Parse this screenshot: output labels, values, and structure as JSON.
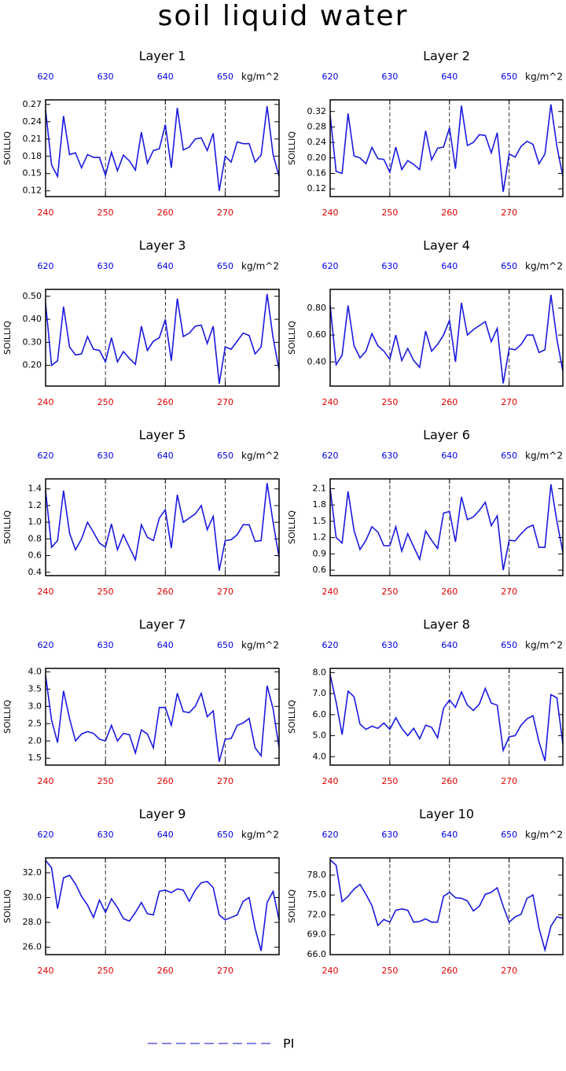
{
  "title": "soil liquid water",
  "legend": {
    "label": "PI",
    "color": "#3b3bd0"
  },
  "xtick_color": "#e00000",
  "x2tick_color": "#0000e0",
  "chart_data": [
    {
      "type": "line",
      "title": "Layer 1",
      "ylabel": "SOILLIQ",
      "x2label": "kg/m^2",
      "color": "#1a1ae0",
      "grid_x": true,
      "x": [
        240,
        241,
        242,
        243,
        244,
        245,
        246,
        247,
        248,
        249,
        250,
        251,
        252,
        253,
        254,
        255,
        256,
        257,
        258,
        259,
        260,
        261,
        262,
        263,
        264,
        265,
        266,
        267,
        268,
        269,
        270,
        271,
        272,
        273,
        274,
        275,
        276,
        277,
        278,
        279
      ],
      "values": [
        0.26,
        0.165,
        0.145,
        0.25,
        0.183,
        0.186,
        0.16,
        0.183,
        0.178,
        0.178,
        0.147,
        0.187,
        0.155,
        0.182,
        0.172,
        0.156,
        0.222,
        0.168,
        0.19,
        0.193,
        0.235,
        0.16,
        0.264,
        0.191,
        0.196,
        0.21,
        0.212,
        0.19,
        0.22,
        0.12,
        0.18,
        0.17,
        0.205,
        0.202,
        0.202,
        0.17,
        0.182,
        0.267,
        0.183,
        0.145
      ],
      "xlim": [
        240,
        279
      ],
      "xticks": [
        240,
        250,
        260,
        270
      ],
      "x2lim": [
        620,
        659
      ],
      "x2ticks": [
        620,
        630,
        640,
        650
      ],
      "ylim": [
        0.11,
        0.278
      ],
      "yticks": [
        0.12,
        0.15,
        0.18,
        0.21,
        0.24,
        0.27
      ]
    },
    {
      "type": "line",
      "title": "Layer 2",
      "ylabel": "SOILLIQ",
      "x2label": "kg/m^2",
      "color": "#1a1ae0",
      "grid_x": true,
      "x": [
        240,
        241,
        242,
        243,
        244,
        245,
        246,
        247,
        248,
        249,
        250,
        251,
        252,
        253,
        254,
        255,
        256,
        257,
        258,
        259,
        260,
        261,
        262,
        263,
        264,
        265,
        266,
        267,
        268,
        269,
        270,
        271,
        272,
        273,
        274,
        275,
        276,
        277,
        278,
        279
      ],
      "values": [
        0.31,
        0.165,
        0.16,
        0.315,
        0.205,
        0.2,
        0.185,
        0.227,
        0.198,
        0.196,
        0.163,
        0.228,
        0.17,
        0.193,
        0.183,
        0.17,
        0.27,
        0.195,
        0.225,
        0.228,
        0.278,
        0.172,
        0.335,
        0.232,
        0.24,
        0.26,
        0.258,
        0.213,
        0.265,
        0.112,
        0.21,
        0.202,
        0.23,
        0.243,
        0.235,
        0.185,
        0.21,
        0.338,
        0.23,
        0.152
      ],
      "xlim": [
        240,
        279
      ],
      "xticks": [
        240,
        250,
        260,
        270
      ],
      "x2lim": [
        620,
        659
      ],
      "x2ticks": [
        620,
        630,
        640,
        650
      ],
      "ylim": [
        0.1,
        0.35
      ],
      "yticks": [
        0.12,
        0.16,
        {
          "value": 0.2,
          "label": "0.20"
        },
        0.24,
        0.28,
        0.32
      ]
    },
    {
      "type": "line",
      "title": "Layer 3",
      "ylabel": "SOILLIQ",
      "x2label": "kg/m^2",
      "color": "#1a1ae0",
      "grid_x": true,
      "x": [
        240,
        241,
        242,
        243,
        244,
        245,
        246,
        247,
        248,
        249,
        250,
        251,
        252,
        253,
        254,
        255,
        256,
        257,
        258,
        259,
        260,
        261,
        262,
        263,
        264,
        265,
        266,
        267,
        268,
        269,
        270,
        271,
        272,
        273,
        274,
        275,
        276,
        277,
        278,
        279
      ],
      "values": [
        0.47,
        0.2,
        0.22,
        0.455,
        0.28,
        0.245,
        0.25,
        0.325,
        0.27,
        0.265,
        0.215,
        0.32,
        0.215,
        0.26,
        0.23,
        0.205,
        0.37,
        0.265,
        0.305,
        0.32,
        0.4,
        0.22,
        0.49,
        0.325,
        0.34,
        0.37,
        0.375,
        0.295,
        0.37,
        0.12,
        0.28,
        0.27,
        0.305,
        0.34,
        0.33,
        0.25,
        0.28,
        0.51,
        0.32,
        0.18
      ],
      "xlim": [
        240,
        279
      ],
      "xticks": [
        240,
        250,
        260,
        270
      ],
      "x2lim": [
        620,
        659
      ],
      "x2ticks": [
        620,
        630,
        640,
        650
      ],
      "ylim": [
        0.11,
        0.53
      ],
      "yticks": [
        {
          "value": 0.2,
          "label": "0.20"
        },
        {
          "value": 0.3,
          "label": "0.30"
        },
        {
          "value": 0.4,
          "label": "0.40"
        },
        {
          "value": 0.5,
          "label": "0.50"
        }
      ]
    },
    {
      "type": "line",
      "title": "Layer 4",
      "ylabel": "SOILLIQ",
      "x2label": "kg/m^2",
      "color": "#1a1ae0",
      "grid_x": true,
      "x": [
        240,
        241,
        242,
        243,
        244,
        245,
        246,
        247,
        248,
        249,
        250,
        251,
        252,
        253,
        254,
        255,
        256,
        257,
        258,
        259,
        260,
        261,
        262,
        263,
        264,
        265,
        266,
        267,
        268,
        269,
        270,
        271,
        272,
        273,
        274,
        275,
        276,
        277,
        278,
        279
      ],
      "values": [
        0.82,
        0.38,
        0.45,
        0.82,
        0.52,
        0.43,
        0.48,
        0.61,
        0.52,
        0.48,
        0.42,
        0.6,
        0.41,
        0.5,
        0.41,
        0.36,
        0.63,
        0.48,
        0.53,
        0.6,
        0.71,
        0.4,
        0.84,
        0.6,
        0.64,
        0.67,
        0.7,
        0.55,
        0.65,
        0.24,
        0.5,
        0.49,
        0.53,
        0.6,
        0.6,
        0.47,
        0.49,
        0.9,
        0.57,
        0.33
      ],
      "xlim": [
        240,
        279
      ],
      "xticks": [
        240,
        250,
        260,
        270
      ],
      "x2lim": [
        620,
        659
      ],
      "x2ticks": [
        620,
        630,
        640,
        650
      ],
      "ylim": [
        0.22,
        0.94
      ],
      "yticks": [
        {
          "value": 0.4,
          "label": "0.40"
        },
        {
          "value": 0.6,
          "label": "0.60"
        },
        {
          "value": 0.8,
          "label": "0.80"
        }
      ]
    },
    {
      "type": "line",
      "title": "Layer 5",
      "ylabel": "SOILLIQ",
      "x2label": "kg/m^2",
      "color": "#1a1ae0",
      "grid_x": true,
      "x": [
        240,
        241,
        242,
        243,
        244,
        245,
        246,
        247,
        248,
        249,
        250,
        251,
        252,
        253,
        254,
        255,
        256,
        257,
        258,
        259,
        260,
        261,
        262,
        263,
        264,
        265,
        266,
        267,
        268,
        269,
        270,
        271,
        272,
        273,
        274,
        275,
        276,
        277,
        278,
        279
      ],
      "values": [
        1.38,
        0.7,
        0.78,
        1.38,
        0.87,
        0.67,
        0.8,
        1.0,
        0.88,
        0.75,
        0.7,
        0.98,
        0.67,
        0.85,
        0.7,
        0.55,
        0.97,
        0.82,
        0.78,
        1.05,
        1.15,
        0.69,
        1.33,
        1.0,
        1.05,
        1.1,
        1.2,
        0.91,
        1.07,
        0.42,
        0.78,
        0.79,
        0.85,
        0.97,
        0.97,
        0.77,
        0.78,
        1.47,
        1.0,
        0.58
      ],
      "xlim": [
        240,
        279
      ],
      "xticks": [
        240,
        250,
        260,
        270
      ],
      "x2lim": [
        620,
        659
      ],
      "x2ticks": [
        620,
        630,
        640,
        650
      ],
      "ylim": [
        0.36,
        1.52
      ],
      "yticks": [
        0.4,
        0.6,
        0.8,
        {
          "value": 1,
          "label": "1.0"
        },
        1.2,
        1.4
      ]
    },
    {
      "type": "line",
      "title": "Layer 6",
      "ylabel": "SOILLIQ",
      "x2label": "kg/m^2",
      "color": "#1a1ae0",
      "grid_x": true,
      "x": [
        240,
        241,
        242,
        243,
        244,
        245,
        246,
        247,
        248,
        249,
        250,
        251,
        252,
        253,
        254,
        255,
        256,
        257,
        258,
        259,
        260,
        261,
        262,
        263,
        264,
        265,
        266,
        267,
        268,
        269,
        270,
        271,
        272,
        273,
        274,
        275,
        276,
        277,
        278,
        279
      ],
      "values": [
        2.1,
        1.2,
        1.1,
        2.05,
        1.33,
        0.98,
        1.15,
        1.4,
        1.3,
        1.05,
        1.05,
        1.4,
        0.95,
        1.27,
        1.03,
        0.8,
        1.32,
        1.15,
        1.0,
        1.65,
        1.68,
        1.12,
        1.95,
        1.53,
        1.58,
        1.7,
        1.85,
        1.42,
        1.6,
        0.6,
        1.15,
        1.14,
        1.27,
        1.38,
        1.43,
        1.02,
        1.02,
        2.18,
        1.5,
        0.93
      ],
      "xlim": [
        240,
        279
      ],
      "xticks": [
        240,
        250,
        260,
        270
      ],
      "x2lim": [
        620,
        659
      ],
      "x2ticks": [
        620,
        630,
        640,
        650
      ],
      "ylim": [
        0.5,
        2.28
      ],
      "yticks": [
        0.6,
        0.9,
        1.2,
        1.5,
        1.8,
        2.1
      ]
    },
    {
      "type": "line",
      "title": "Layer 7",
      "ylabel": "SOILLIQ",
      "x2label": "kg/m^2",
      "color": "#1a1ae0",
      "grid_x": true,
      "x": [
        240,
        241,
        242,
        243,
        244,
        245,
        246,
        247,
        248,
        249,
        250,
        251,
        252,
        253,
        254,
        255,
        256,
        257,
        258,
        259,
        260,
        261,
        262,
        263,
        264,
        265,
        266,
        267,
        268,
        269,
        270,
        271,
        272,
        273,
        274,
        275,
        276,
        277,
        278,
        279
      ],
      "values": [
        3.9,
        2.6,
        1.95,
        3.45,
        2.65,
        2.0,
        2.2,
        2.27,
        2.22,
        2.05,
        2.0,
        2.45,
        2.0,
        2.22,
        2.18,
        1.65,
        2.32,
        2.2,
        1.8,
        2.97,
        2.97,
        2.45,
        3.38,
        2.85,
        2.82,
        3.0,
        3.38,
        2.7,
        2.87,
        1.4,
        2.05,
        2.07,
        2.45,
        2.52,
        2.65,
        1.8,
        1.57,
        3.6,
        2.93,
        1.8
      ],
      "xlim": [
        240,
        279
      ],
      "xticks": [
        240,
        250,
        260,
        270
      ],
      "x2lim": [
        620,
        659
      ],
      "x2ticks": [
        620,
        630,
        640,
        650
      ],
      "ylim": [
        1.3,
        4.1
      ],
      "yticks": [
        1.5,
        {
          "value": 2,
          "label": "2.0"
        },
        2.5,
        {
          "value": 3,
          "label": "3.0"
        },
        3.5,
        {
          "value": 4,
          "label": "4.0"
        }
      ]
    },
    {
      "type": "line",
      "title": "Layer 8",
      "ylabel": "SOILLIQ",
      "x2label": "kg/m^2",
      "color": "#1a1ae0",
      "grid_x": true,
      "x": [
        240,
        241,
        242,
        243,
        244,
        245,
        246,
        247,
        248,
        249,
        250,
        251,
        252,
        253,
        254,
        255,
        256,
        257,
        258,
        259,
        260,
        261,
        262,
        263,
        264,
        265,
        266,
        267,
        268,
        269,
        270,
        271,
        272,
        273,
        274,
        275,
        276,
        277,
        278,
        279
      ],
      "values": [
        7.9,
        6.6,
        5.05,
        7.12,
        6.85,
        5.55,
        5.3,
        5.45,
        5.35,
        5.6,
        5.3,
        5.85,
        5.35,
        5.0,
        5.35,
        4.85,
        5.5,
        5.4,
        4.9,
        6.3,
        6.7,
        6.35,
        7.08,
        6.45,
        6.2,
        6.5,
        7.25,
        6.55,
        6.45,
        4.3,
        4.95,
        5.0,
        5.5,
        5.8,
        5.95,
        4.7,
        3.8,
        6.95,
        6.8,
        4.6
      ],
      "xlim": [
        240,
        279
      ],
      "xticks": [
        240,
        250,
        260,
        270
      ],
      "x2lim": [
        620,
        659
      ],
      "x2ticks": [
        620,
        630,
        640,
        650
      ],
      "ylim": [
        3.6,
        8.2
      ],
      "yticks": [
        {
          "value": 4,
          "label": "4.0"
        },
        {
          "value": 5,
          "label": "5.0"
        },
        {
          "value": 6,
          "label": "6.0"
        },
        {
          "value": 7,
          "label": "7.0"
        },
        {
          "value": 8,
          "label": "8.0"
        }
      ]
    },
    {
      "type": "line",
      "title": "Layer 9",
      "ylabel": "SOILLIQ",
      "x2label": "kg/m^2",
      "color": "#1a1ae0",
      "grid_x": true,
      "x": [
        240,
        241,
        242,
        243,
        244,
        245,
        246,
        247,
        248,
        249,
        250,
        251,
        252,
        253,
        254,
        255,
        256,
        257,
        258,
        259,
        260,
        261,
        262,
        263,
        264,
        265,
        266,
        267,
        268,
        269,
        270,
        271,
        272,
        273,
        274,
        275,
        276,
        277,
        278,
        279
      ],
      "values": [
        33.0,
        32.4,
        29.1,
        31.6,
        31.8,
        31.1,
        30.1,
        29.4,
        28.4,
        29.8,
        28.8,
        29.9,
        29.2,
        28.3,
        28.1,
        28.8,
        29.6,
        28.7,
        28.6,
        30.5,
        30.6,
        30.4,
        30.7,
        30.6,
        29.7,
        30.6,
        31.2,
        31.3,
        30.8,
        28.6,
        28.2,
        28.4,
        28.6,
        29.7,
        30.0,
        27.5,
        25.7,
        29.6,
        30.5,
        28.2
      ],
      "xlim": [
        240,
        279
      ],
      "xticks": [
        240,
        250,
        260,
        270
      ],
      "x2lim": [
        620,
        659
      ],
      "x2ticks": [
        620,
        630,
        640,
        650
      ],
      "ylim": [
        25.4,
        33.2
      ],
      "yticks": [
        {
          "value": 26,
          "label": "26.0"
        },
        {
          "value": 28,
          "label": "28.0"
        },
        {
          "value": 30,
          "label": "30.0"
        },
        {
          "value": 32,
          "label": "32.0"
        }
      ]
    },
    {
      "type": "line",
      "title": "Layer 10",
      "ylabel": "SOILLIQ",
      "x2label": "kg/m^2",
      "color": "#1a1ae0",
      "grid_x": true,
      "x": [
        240,
        241,
        242,
        243,
        244,
        245,
        246,
        247,
        248,
        249,
        250,
        251,
        252,
        253,
        254,
        255,
        256,
        257,
        258,
        259,
        260,
        261,
        262,
        263,
        264,
        265,
        266,
        267,
        268,
        269,
        270,
        271,
        272,
        273,
        274,
        275,
        276,
        277,
        278,
        279
      ],
      "values": [
        80.3,
        79.5,
        74.0,
        74.8,
        75.9,
        76.6,
        75.1,
        73.4,
        70.4,
        71.3,
        70.9,
        72.7,
        72.9,
        72.7,
        70.9,
        71.0,
        71.4,
        70.9,
        70.9,
        74.8,
        75.4,
        74.6,
        74.5,
        74.1,
        72.6,
        73.3,
        75.1,
        75.4,
        76.1,
        73.3,
        70.9,
        71.7,
        72.1,
        74.5,
        75.0,
        70.0,
        66.7,
        70.3,
        71.7,
        71.5
      ],
      "xlim": [
        240,
        279
      ],
      "xticks": [
        240,
        250,
        260,
        270
      ],
      "x2lim": [
        620,
        659
      ],
      "x2ticks": [
        620,
        630,
        640,
        650
      ],
      "ylim": [
        66,
        80.6
      ],
      "yticks": [
        {
          "value": 66,
          "label": "66.0"
        },
        {
          "value": 69,
          "label": "69.0"
        },
        {
          "value": 72,
          "label": "72.0"
        },
        {
          "value": 75,
          "label": "75.0"
        },
        {
          "value": 78,
          "label": "78.0"
        }
      ]
    }
  ]
}
